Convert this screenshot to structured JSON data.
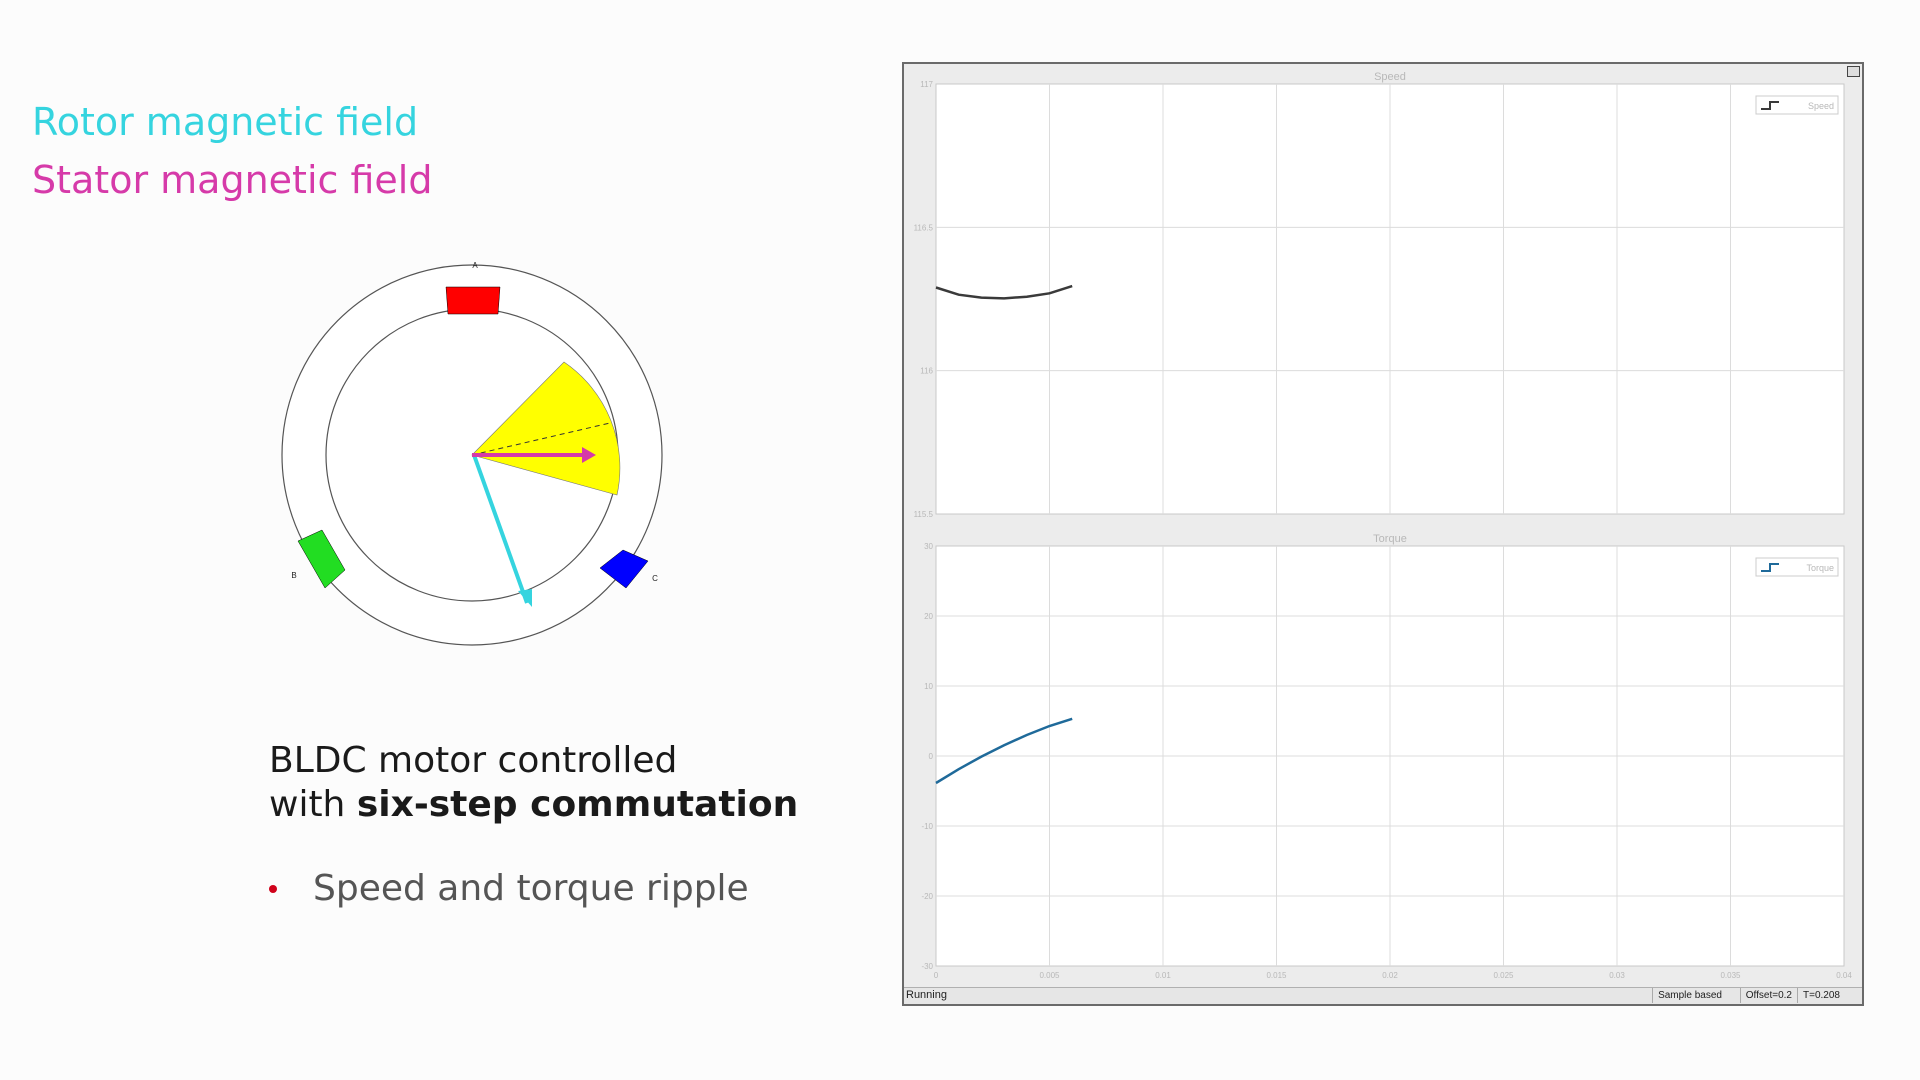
{
  "legend": {
    "rotor_label": "Rotor magnetic field",
    "stator_label": "Stator magnetic field",
    "rotor_color": "#35d4df",
    "stator_color": "#d63aa9"
  },
  "motor": {
    "phase_a_label": "A",
    "phase_b_label": "B",
    "phase_c_label": "C",
    "phase_a_color": "#ff0000",
    "phase_b_color": "#22dd22",
    "phase_c_color": "#0000ff",
    "sector_color": "#ffff00"
  },
  "caption": {
    "line1": "BLDC motor controlled",
    "line2_prefix": "with ",
    "line2_bold": "six-step commutation",
    "bullet": "Speed and torque ripple"
  },
  "scope": {
    "status_running": "Running",
    "status_sample": "Sample based",
    "status_offset": "Offset=0.2",
    "status_time": "T=0.208"
  },
  "chart_data": [
    {
      "type": "line",
      "title": "Speed",
      "legend": [
        "Speed"
      ],
      "legend_position": "top-right",
      "grid": true,
      "xlim": [
        0,
        0.04
      ],
      "ylim": [
        115.5,
        117
      ],
      "yticks": [
        "117",
        "116.5",
        "116",
        "115.5"
      ],
      "xticks": [],
      "series": [
        {
          "name": "Speed",
          "color": "#3a3a3a",
          "x": [
            0,
            0.001,
            0.002,
            0.003,
            0.004,
            0.005,
            0.006
          ],
          "y": [
            116.29,
            116.265,
            116.255,
            116.252,
            116.258,
            116.27,
            116.295
          ]
        }
      ]
    },
    {
      "type": "line",
      "title": "Torque",
      "legend": [
        "Torque"
      ],
      "legend_position": "top-right",
      "grid": true,
      "xlim": [
        0,
        0.04
      ],
      "ylim": [
        -35,
        35
      ],
      "yticks": [
        "30",
        "20",
        "10",
        "0",
        "-10",
        "-20",
        "-30"
      ],
      "xticks": [
        "0",
        "0.005",
        "0.01",
        "0.015",
        "0.02",
        "0.025",
        "0.03",
        "0.035",
        "0.04"
      ],
      "series": [
        {
          "name": "Torque",
          "color": "#1f6a9a",
          "x": [
            0,
            0.001,
            0.002,
            0.003,
            0.004,
            0.005,
            0.006
          ],
          "y": [
            -4.5,
            -2.2,
            -0.1,
            1.8,
            3.5,
            5.0,
            6.2
          ]
        }
      ]
    }
  ]
}
